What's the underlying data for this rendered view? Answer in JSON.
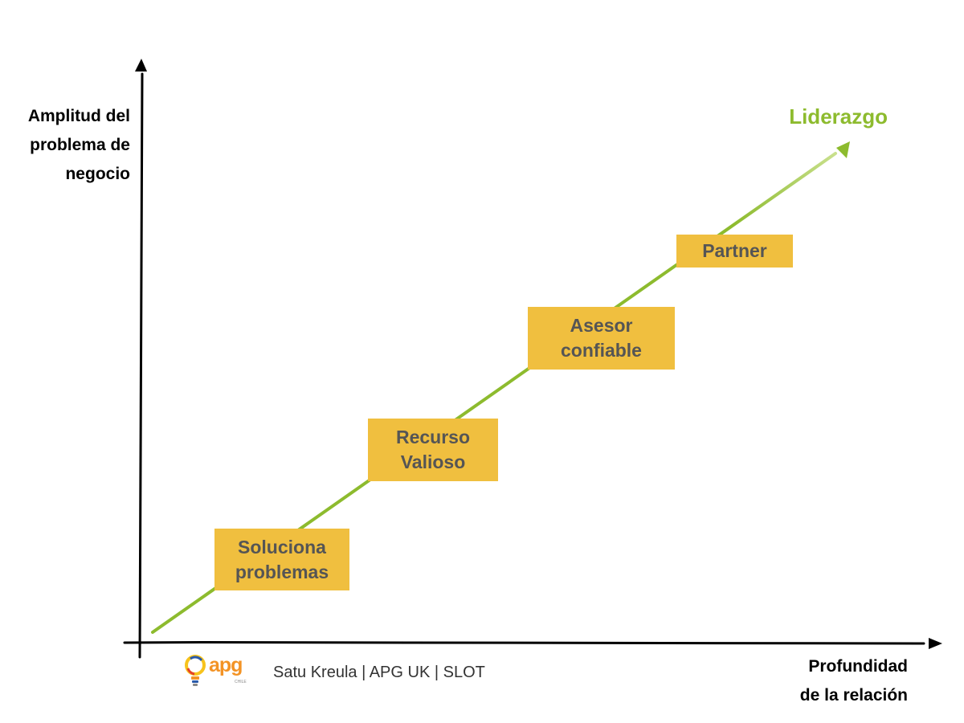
{
  "diagram": {
    "y_axis_label": "Amplitud del\nproblema de\nnegocio",
    "x_axis_label": "Profundidad\nde la relación",
    "goal_label": "Liderazgo",
    "stages": [
      {
        "label": "Soluciona\nproblemas"
      },
      {
        "label": "Recurso\nValioso"
      },
      {
        "label": "Asesor\nconfiable"
      },
      {
        "label": "Partner"
      }
    ]
  },
  "footer": {
    "logo_text": "apg",
    "logo_subtext": "CHILE",
    "credit": "Satu Kreula | APG UK | SLOT"
  },
  "colors": {
    "axis": "#000000",
    "trend_line": "#8dbb2e",
    "goal_text": "#8dbb2e",
    "stage_box_fill": "#f0bf3f",
    "stage_text": "#555555",
    "logo_blue": "#2b5aa8",
    "logo_orange": "#f39325",
    "logo_yellow": "#f7c31c",
    "logo_red": "#e5402b"
  },
  "icons": {
    "y_axis_arrow": "arrow-up-icon",
    "x_axis_arrow": "arrow-right-icon",
    "trend_arrow": "arrowhead-icon",
    "logo": "lightbulb-logo-icon"
  }
}
